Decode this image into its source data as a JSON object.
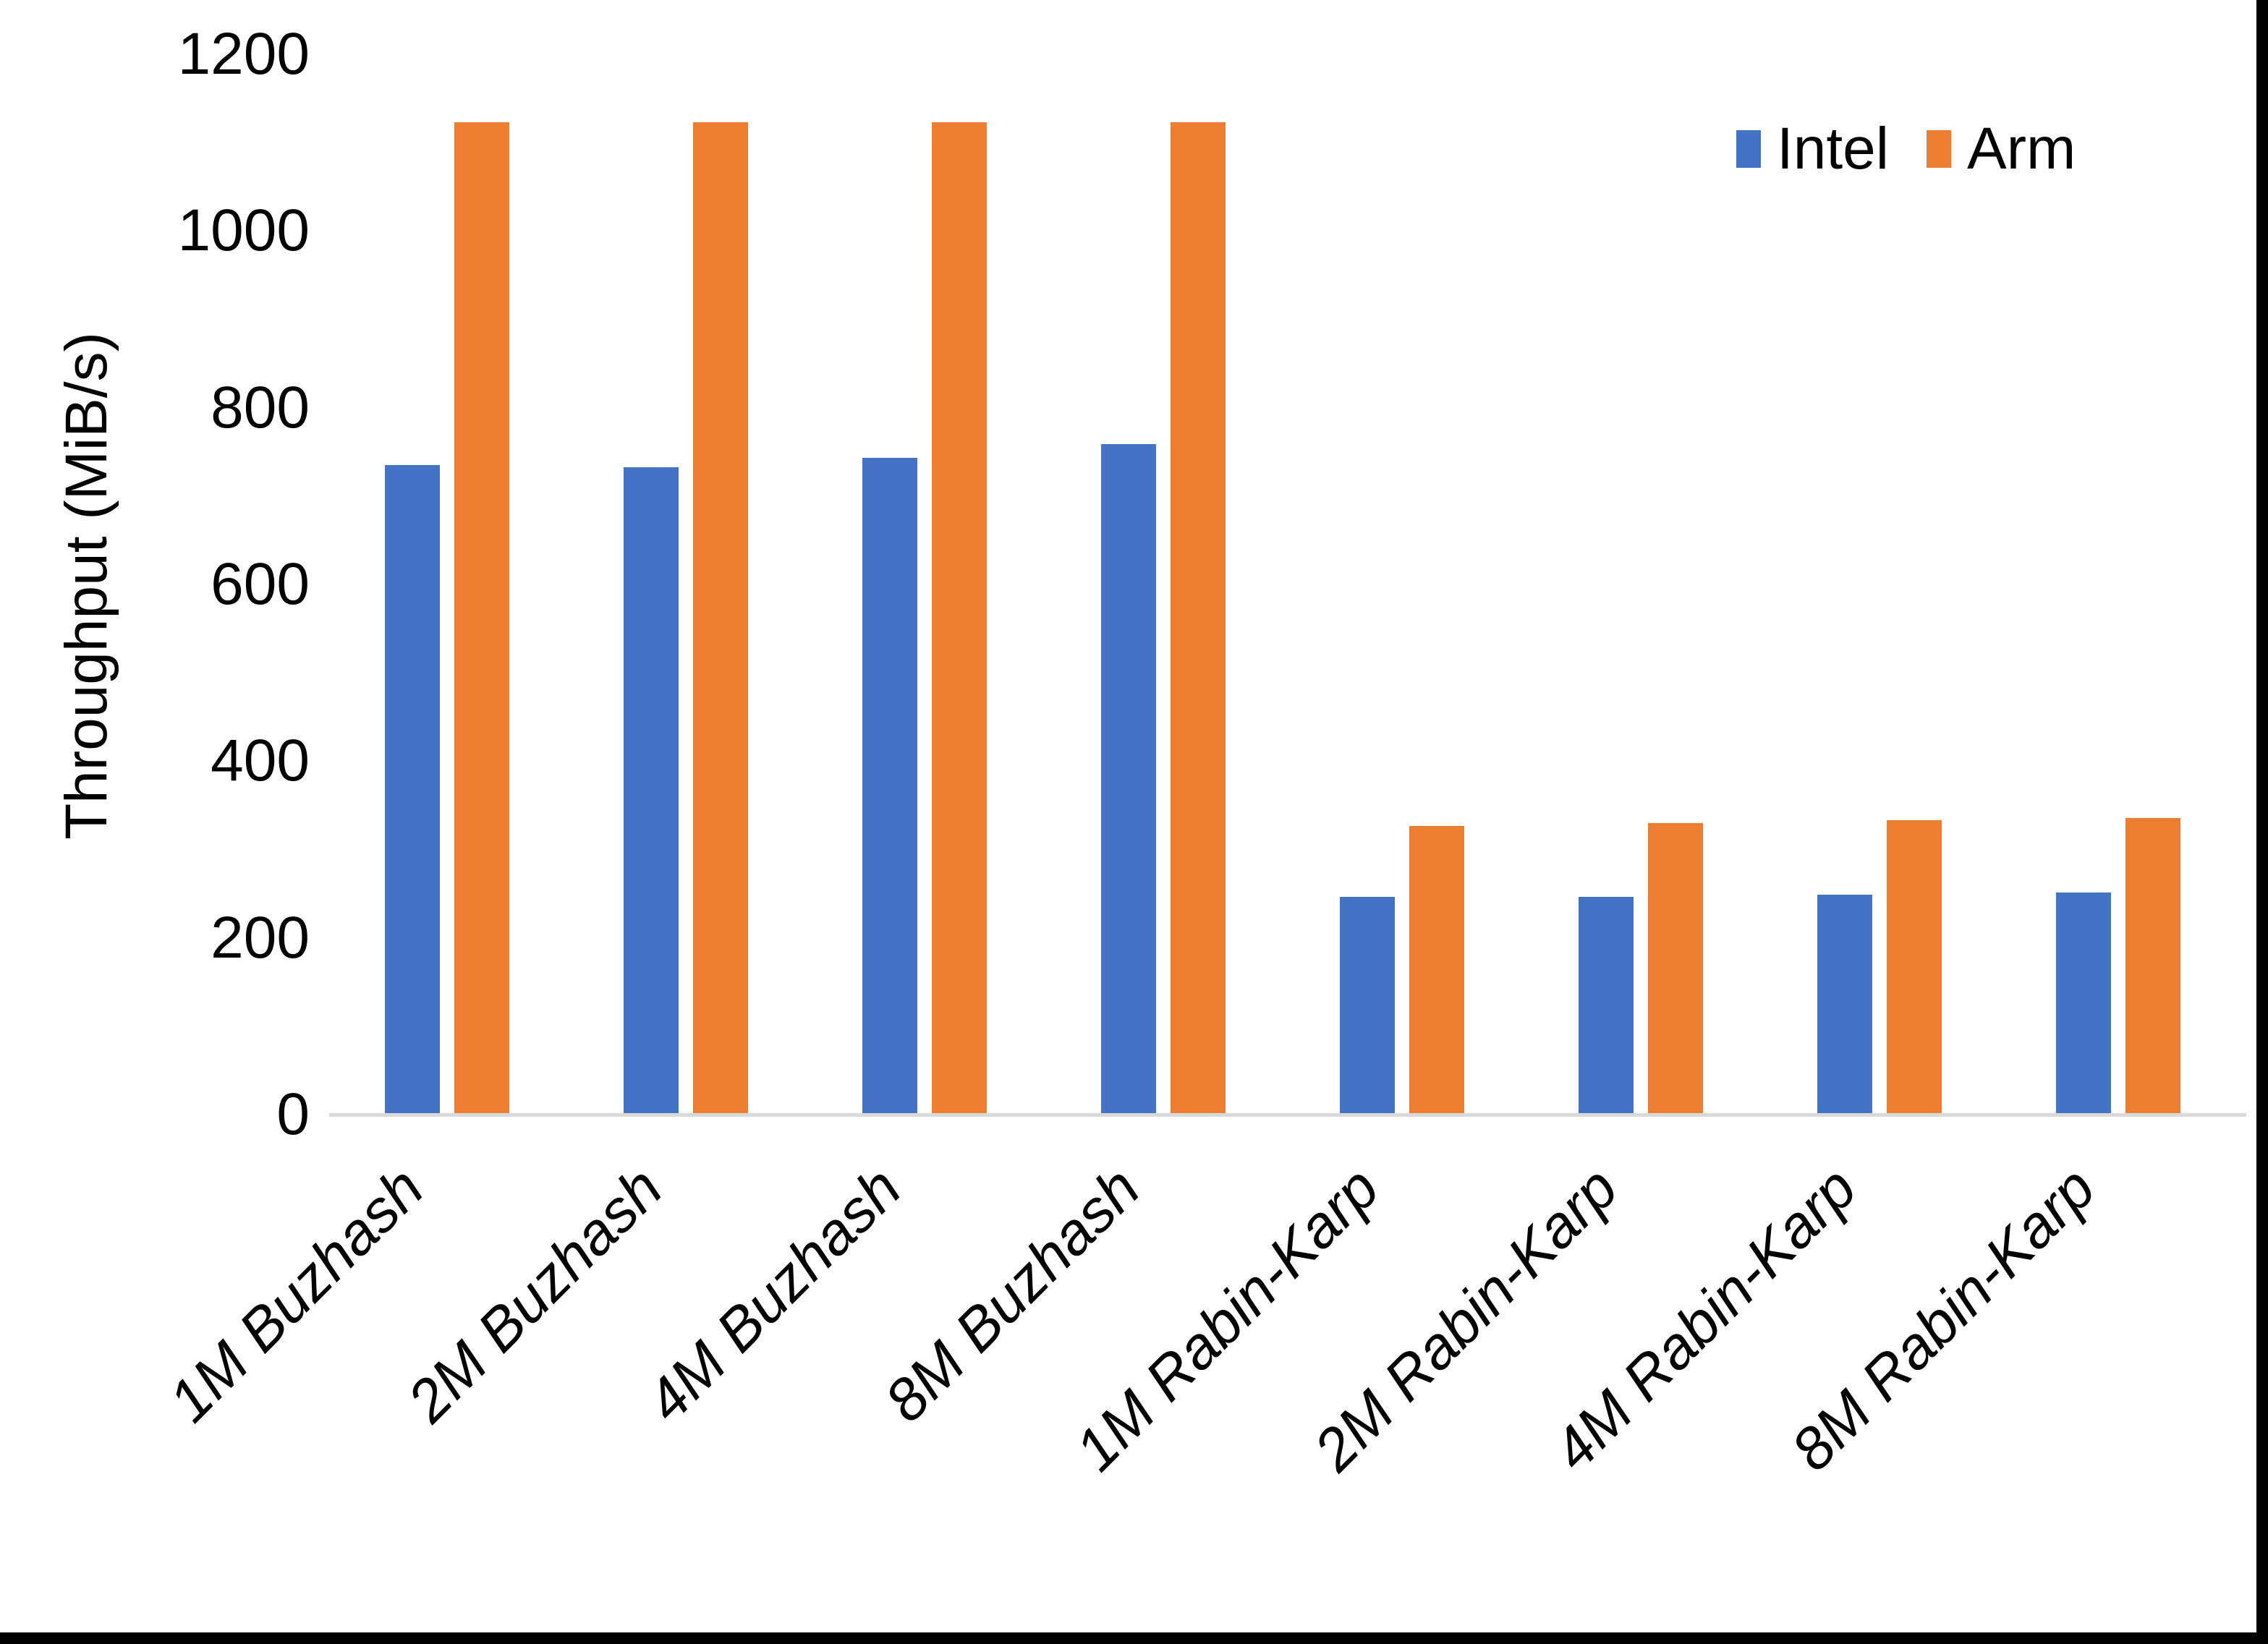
{
  "chart_data": {
    "type": "bar",
    "title": "",
    "xlabel": "",
    "ylabel": "Throughput (MiB/s)",
    "ylim": [
      0,
      1200
    ],
    "yticks": [
      "0",
      "200",
      "400",
      "600",
      "800",
      "1000",
      "1200"
    ],
    "ytick_values": [
      0,
      200,
      400,
      600,
      800,
      1000,
      1200
    ],
    "grid": false,
    "legend_position": "top-right",
    "categories": [
      "1M Buzhash",
      "2M Buzhash",
      "4M Buzhash",
      "8M Buzhash",
      "1M Rabin-Karp",
      "2M Rabin-Karp",
      "4M Rabin-Karp",
      "8M Rabin-Karp"
    ],
    "series": [
      {
        "name": "Intel",
        "color": "#4472c4",
        "values": [
          735,
          733,
          743,
          759,
          246,
          246,
          249,
          251
        ]
      },
      {
        "name": "Arm",
        "color": "#ed7d31",
        "values": [
          1123,
          1123,
          1123,
          1123,
          327,
          330,
          333,
          336
        ]
      }
    ]
  },
  "colors": {
    "axis_line": "#d9d9d9",
    "text": "#000000",
    "background": "#ffffff",
    "window_edge": "#000000"
  }
}
